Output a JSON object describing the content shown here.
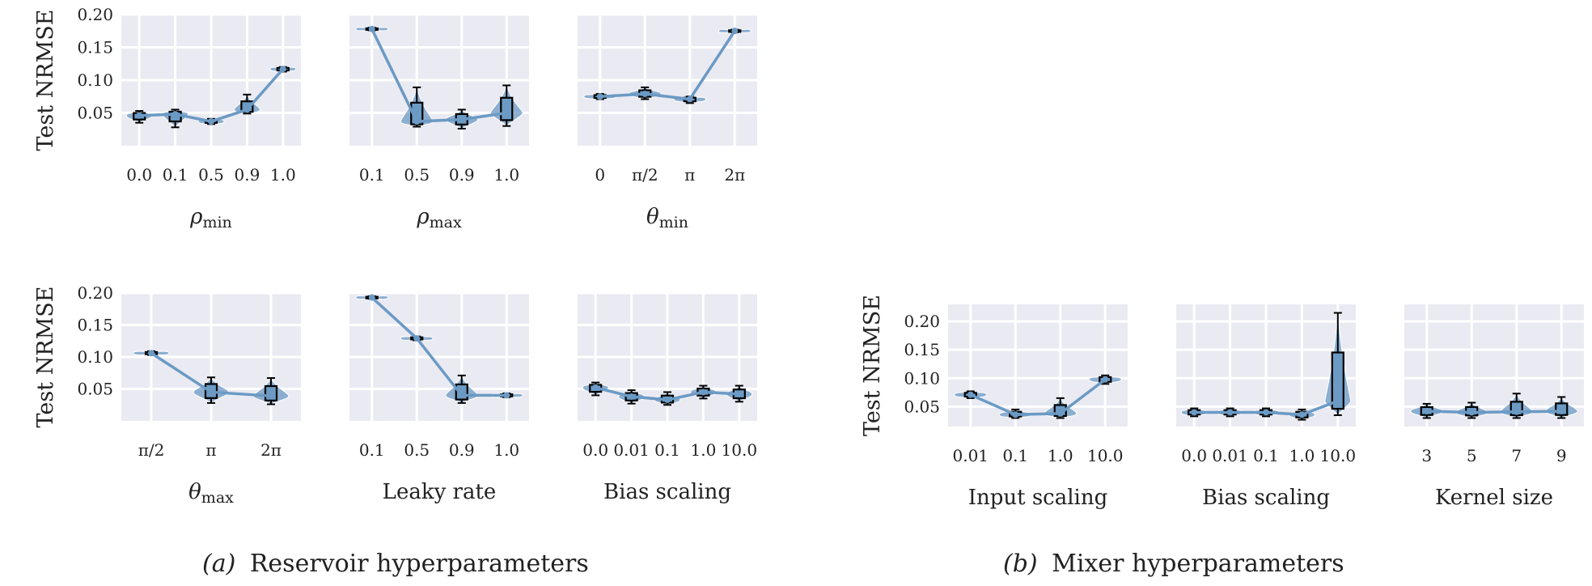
{
  "style": {
    "panel_bg": "#eaeaf2",
    "grid": "#ffffff",
    "series_color": "#6b9ac4",
    "violin_color": "#6b9ac4",
    "box_edge": "#000000"
  },
  "captions": {
    "a": {
      "label": "(a)",
      "text": "Reservoir hyperparameters"
    },
    "b": {
      "label": "(b)",
      "text": "Mixer hyperparameters"
    }
  },
  "chart_data": [
    {
      "id": "rho-min",
      "type": "line",
      "group": "a",
      "ylabel": "Test NRMSE",
      "xlabel": "ρ",
      "xlabel_sub": "min",
      "yticks": [
        "0.05",
        "0.10",
        "0.15",
        "0.20"
      ],
      "ylim": [
        0.0,
        0.2
      ],
      "categories": [
        "0.0",
        "0.1",
        "0.5",
        "0.9",
        "1.0"
      ],
      "values": [
        0.046,
        0.048,
        0.037,
        0.055,
        0.117
      ],
      "spread": [
        [
          0.035,
          0.053
        ],
        [
          0.028,
          0.055
        ],
        [
          0.033,
          0.041
        ],
        [
          0.049,
          0.078
        ],
        [
          0.113,
          0.12
        ]
      ]
    },
    {
      "id": "rho-max",
      "type": "line",
      "group": "a",
      "ylabel": "",
      "xlabel": "ρ",
      "xlabel_sub": "max",
      "yticks": [
        "0.05",
        "0.10",
        "0.15",
        "0.20"
      ],
      "ylim": [
        0.0,
        0.2
      ],
      "categories": [
        "0.1",
        "0.5",
        "0.9",
        "1.0"
      ],
      "values": [
        0.178,
        0.037,
        0.04,
        0.05
      ],
      "spread": [
        [
          0.176,
          0.18
        ],
        [
          0.029,
          0.089
        ],
        [
          0.026,
          0.055
        ],
        [
          0.03,
          0.092
        ]
      ]
    },
    {
      "id": "theta-min",
      "type": "line",
      "group": "a",
      "ylabel": "",
      "xlabel": "θ",
      "xlabel_sub": "min",
      "yticks": [
        "0.05",
        "0.10",
        "0.15",
        "0.20"
      ],
      "ylim": [
        0.0,
        0.2
      ],
      "categories": [
        "0",
        "π/2",
        "π",
        "2π"
      ],
      "values": [
        0.075,
        0.079,
        0.071,
        0.175
      ],
      "spread": [
        [
          0.071,
          0.079
        ],
        [
          0.071,
          0.089
        ],
        [
          0.065,
          0.075
        ],
        [
          0.173,
          0.177
        ]
      ]
    },
    {
      "id": "theta-max",
      "type": "line",
      "group": "a",
      "ylabel": "Test NRMSE",
      "xlabel": "θ",
      "xlabel_sub": "max",
      "yticks": [
        "0.05",
        "0.10",
        "0.15",
        "0.20"
      ],
      "ylim": [
        0.0,
        0.2
      ],
      "categories": [
        "π/2",
        "π",
        "2π"
      ],
      "values": [
        0.106,
        0.045,
        0.039
      ],
      "spread": [
        [
          0.103,
          0.109
        ],
        [
          0.028,
          0.068
        ],
        [
          0.026,
          0.067
        ]
      ]
    },
    {
      "id": "leaky-rate",
      "type": "line",
      "group": "a",
      "ylabel": "",
      "xlabel": "Leaky rate",
      "xlabel_sub": "",
      "yticks": [
        "0.05",
        "0.10",
        "0.15",
        "0.20"
      ],
      "ylim": [
        0.0,
        0.2
      ],
      "categories": [
        "0.1",
        "0.5",
        "0.9",
        "1.0"
      ],
      "values": [
        0.193,
        0.129,
        0.04,
        0.04
      ],
      "spread": [
        [
          0.191,
          0.195
        ],
        [
          0.126,
          0.132
        ],
        [
          0.028,
          0.071
        ],
        [
          0.037,
          0.043
        ]
      ]
    },
    {
      "id": "bias-scaling-a",
      "type": "line",
      "group": "a",
      "ylabel": "",
      "xlabel": "Bias scaling",
      "xlabel_sub": "",
      "yticks": [
        "0.05",
        "0.10",
        "0.15",
        "0.20"
      ],
      "ylim": [
        0.0,
        0.2
      ],
      "categories": [
        "0.0",
        "0.01",
        "0.1",
        "1.0",
        "10.0"
      ],
      "values": [
        0.052,
        0.038,
        0.033,
        0.045,
        0.042
      ],
      "spread": [
        [
          0.04,
          0.06
        ],
        [
          0.027,
          0.048
        ],
        [
          0.025,
          0.045
        ],
        [
          0.035,
          0.055
        ],
        [
          0.03,
          0.055
        ]
      ]
    },
    {
      "id": "input-scaling",
      "type": "line",
      "group": "b",
      "ylabel": "Test NRMSE",
      "xlabel": "Input scaling",
      "xlabel_sub": "",
      "yticks": [
        "0.05",
        "0.10",
        "0.15",
        "0.20"
      ],
      "ylim": [
        0.015,
        0.23
      ],
      "categories": [
        "0.01",
        "0.1",
        "1.0",
        "10.0"
      ],
      "values": [
        0.071,
        0.036,
        0.038,
        0.098
      ],
      "spread": [
        [
          0.065,
          0.077
        ],
        [
          0.03,
          0.045
        ],
        [
          0.03,
          0.065
        ],
        [
          0.09,
          0.105
        ]
      ]
    },
    {
      "id": "bias-scaling-b",
      "type": "line",
      "group": "b",
      "ylabel": "",
      "xlabel": "Bias scaling",
      "xlabel_sub": "",
      "yticks": [
        "0.05",
        "0.10",
        "0.15",
        "0.20"
      ],
      "ylim": [
        0.015,
        0.23
      ],
      "categories": [
        "0.0",
        "0.01",
        "0.1",
        "1.0",
        "10.0"
      ],
      "values": [
        0.04,
        0.04,
        0.04,
        0.036,
        0.06
      ],
      "spread": [
        [
          0.033,
          0.047
        ],
        [
          0.033,
          0.047
        ],
        [
          0.033,
          0.047
        ],
        [
          0.027,
          0.045
        ],
        [
          0.035,
          0.215
        ]
      ]
    },
    {
      "id": "kernel-size",
      "type": "line",
      "group": "b",
      "ylabel": "",
      "xlabel": "Kernel size",
      "xlabel_sub": "",
      "yticks": [
        "0.05",
        "0.10",
        "0.15",
        "0.20"
      ],
      "ylim": [
        0.015,
        0.23
      ],
      "categories": [
        "3",
        "5",
        "7",
        "9"
      ],
      "values": [
        0.042,
        0.04,
        0.041,
        0.042
      ],
      "spread": [
        [
          0.03,
          0.055
        ],
        [
          0.03,
          0.057
        ],
        [
          0.03,
          0.073
        ],
        [
          0.03,
          0.067
        ]
      ]
    }
  ]
}
